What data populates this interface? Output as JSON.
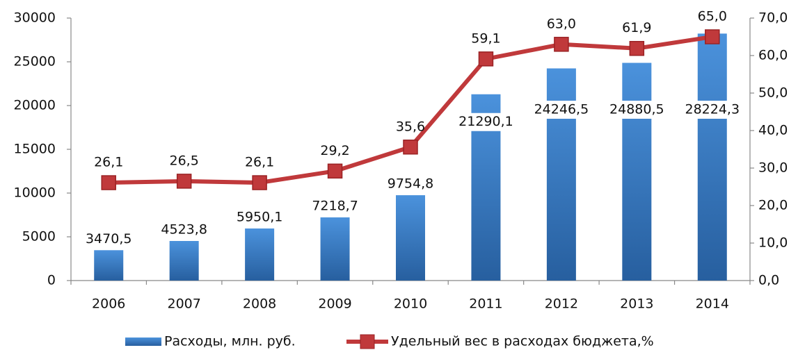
{
  "chart_data": {
    "type": "bar",
    "categories": [
      "2006",
      "2007",
      "2008",
      "2009",
      "2010",
      "2011",
      "2012",
      "2013",
      "2014"
    ],
    "series": [
      {
        "name": "Расходы, млн. руб.",
        "color": "#3a7cc9",
        "values": [
          3470.5,
          4523.8,
          5950.1,
          7218.7,
          9754.8,
          21290.1,
          24246.5,
          24880.5,
          28224.3
        ],
        "value_labels": [
          "3470,5",
          "4523,8",
          "5950,1",
          "7218,7",
          "9754,8",
          "21290,1",
          "24246,5",
          "24880,5",
          "28224,3"
        ]
      },
      {
        "name": "Удельный вес в расходах бюджета,%",
        "color": "#c0393b",
        "type": "line",
        "axis": "y2",
        "values": [
          26.1,
          26.5,
          26.1,
          29.2,
          35.6,
          59.1,
          63.0,
          61.9,
          65.0
        ],
        "value_labels": [
          "26,1",
          "26,5",
          "26,1",
          "29,2",
          "35,6",
          "59,1",
          "63,0",
          "61,9",
          "65,0"
        ]
      }
    ],
    "ylim": [
      0,
      30000
    ],
    "yticks": [
      0,
      5000,
      10000,
      15000,
      20000,
      25000,
      30000
    ],
    "y2lim": [
      0,
      70
    ],
    "y2ticks": [
      {
        "value": 0,
        "label": "0,0"
      },
      {
        "value": 10,
        "label": "10,0"
      },
      {
        "value": 20,
        "label": "20,0"
      },
      {
        "value": 30,
        "label": "30,0"
      },
      {
        "value": 40,
        "label": "40,0"
      },
      {
        "value": 50,
        "label": "50,0"
      },
      {
        "value": 60,
        "label": "60,0"
      },
      {
        "value": 70,
        "label": "70,0"
      }
    ],
    "legend": "bottom"
  }
}
